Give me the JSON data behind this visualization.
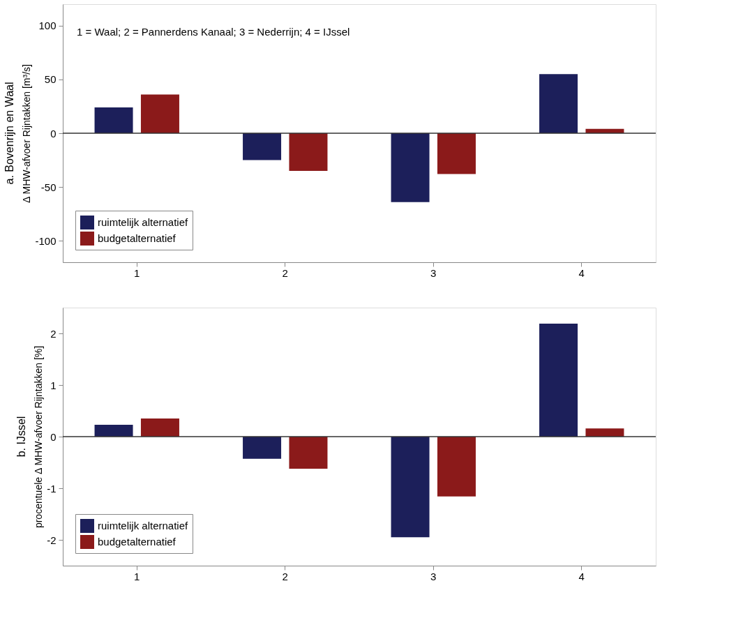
{
  "chart_data": [
    {
      "type": "bar",
      "title": "a. Bovenrijn en  Waal",
      "ylabel": "Δ MHW-afvoer Rijntakken [m³/s]",
      "categories": [
        "1",
        "2",
        "3",
        "4"
      ],
      "series": [
        {
          "name": "ruimtelijk alternatief",
          "color": "#1c1f5a",
          "values": [
            24,
            -25,
            -64,
            55
          ]
        },
        {
          "name": "budgetalternatief",
          "color": "#8b1a1a",
          "values": [
            36,
            -35,
            -38,
            4
          ]
        }
      ],
      "ylim": [
        -120,
        120
      ],
      "yticks": [
        -100,
        -50,
        0,
        50,
        100
      ],
      "grid": false,
      "legend": "bottom left",
      "annotations": [
        "1 = Waal; 2 = Pannerdens Kanaal; 3 = Nederrijn; 4 = IJssel"
      ],
      "ref_lines": [
        {
          "axis": "y",
          "value": 0,
          "color": "#333333"
        }
      ]
    },
    {
      "type": "bar",
      "title": "b. IJssel",
      "ylabel": "procentuele Δ MHW-afvoer Rijntakken [%]",
      "categories": [
        "1",
        "2",
        "3",
        "4"
      ],
      "series": [
        {
          "name": "ruimtelijk alternatief",
          "color": "#1c1f5a",
          "values": [
            0.23,
            -0.43,
            -1.95,
            2.19
          ]
        },
        {
          "name": "budgetalternatief",
          "color": "#8b1a1a",
          "values": [
            0.35,
            -0.62,
            -1.16,
            0.16
          ]
        }
      ],
      "ylim": [
        -2.5,
        2.5
      ],
      "yticks": [
        -2,
        -1,
        0,
        1,
        2
      ],
      "grid": false,
      "legend": "bottom left",
      "ref_lines": [
        {
          "axis": "y",
          "value": 0,
          "color": "#333333"
        }
      ]
    }
  ]
}
